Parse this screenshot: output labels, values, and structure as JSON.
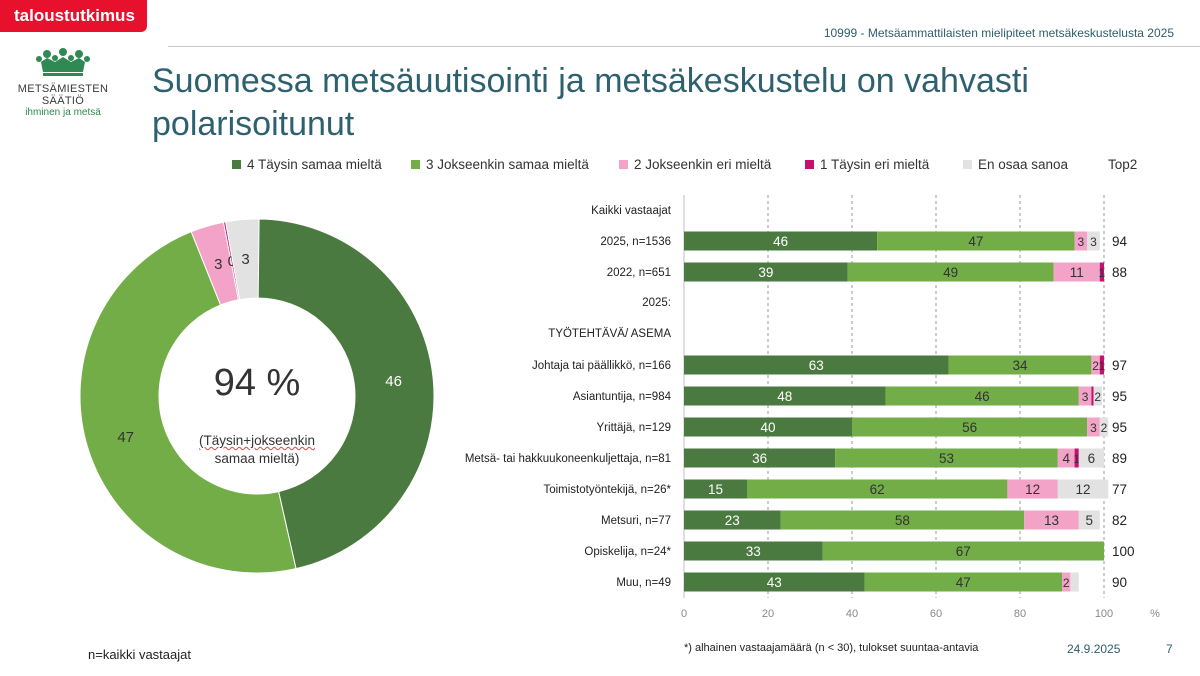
{
  "header": {
    "brand": "taloustutkimus",
    "report_id": "10999 - Metsäammattilaisten mielipiteet metsäkeskustelusta 2025"
  },
  "logo": {
    "name": "METSÄMIESTEN SÄÄTIÖ",
    "tagline": "ihminen ja metsä",
    "icon": "crown-icon"
  },
  "title": "Suomessa metsäuutisointi ja metsäkeskustelu on vahvasti polarisoitunut",
  "colors": {
    "fully_agree": "#4a7a3f",
    "somewhat_agree": "#72ad47",
    "somewhat_disagree": "#f2a3c7",
    "fully_disagree": "#c4106e",
    "dont_know": "#e2e2e2"
  },
  "legend": {
    "items": [
      {
        "label": "4 Täysin samaa mieltä",
        "color": "#4a7a3f"
      },
      {
        "label": "3 Jokseenkin samaa mieltä",
        "color": "#72ad47"
      },
      {
        "label": "2 Jokseenkin eri mieltä",
        "color": "#f2a3c7"
      },
      {
        "label": "1 Täysin eri mieltä",
        "color": "#c4106e"
      },
      {
        "label": "En osaa sanoa",
        "color": "#e2e2e2"
      }
    ],
    "top2_label": "Top2"
  },
  "donut": {
    "center_value": "94 %",
    "center_label_line1": "(Täysin+jokseenkin",
    "center_label_line2": "samaa mieltä)"
  },
  "chart_data": [
    {
      "type": "pie",
      "variant": "donut",
      "categories": [
        "4 Täysin samaa mieltä",
        "3 Jokseenkin samaa mieltä",
        "2 Jokseenkin eri mieltä",
        "1 Täysin eri mieltä",
        "En osaa sanoa"
      ],
      "values": [
        46,
        47,
        3,
        0,
        3
      ],
      "colors": [
        "#4a7a3f",
        "#72ad47",
        "#f2a3c7",
        "#c4106e",
        "#e2e2e2"
      ],
      "center_text": "94 %"
    },
    {
      "type": "bar",
      "orientation": "horizontal",
      "stacked": true,
      "xlabel": "%",
      "xlim": [
        0,
        100
      ],
      "xticks": [
        0,
        20,
        40,
        60,
        80,
        100
      ],
      "grid": true,
      "rows": [
        {
          "label": "Kaikki vastaajat",
          "header": true
        },
        {
          "label": "2025, n=1536",
          "values": [
            46,
            47,
            3,
            0,
            3
          ],
          "labels": [
            "46",
            "47",
            "3",
            "",
            "3"
          ],
          "top2": "94"
        },
        {
          "label": "2022, n=651",
          "values": [
            39,
            49,
            11,
            1,
            0
          ],
          "labels": [
            "39",
            "49",
            "11",
            "1",
            ""
          ],
          "top2": "88"
        },
        {
          "label": "2025:",
          "header": true
        },
        {
          "label": "TYÖTEHTÄVÄ/ ASEMA",
          "header": true
        },
        {
          "label": "Johtaja tai päällikkö, n=166",
          "values": [
            63,
            34,
            2,
            1,
            0
          ],
          "labels": [
            "63",
            "34",
            "2",
            "1",
            ""
          ],
          "top2": "97"
        },
        {
          "label": "Asiantuntija, n=984",
          "values": [
            48,
            46,
            3,
            0.5,
            2
          ],
          "labels": [
            "48",
            "46",
            "3",
            "",
            "2"
          ],
          "top2": "95"
        },
        {
          "label": "Yrittäjä, n=129",
          "values": [
            40,
            56,
            3,
            0,
            2
          ],
          "labels": [
            "40",
            "56",
            "3",
            "",
            "2"
          ],
          "top2": "95"
        },
        {
          "label": "Metsä- tai hakkuukoneenkuljettaja, n=81",
          "values": [
            36,
            53,
            4,
            1,
            6
          ],
          "labels": [
            "36",
            "53",
            "4",
            "1",
            "6"
          ],
          "top2": "89"
        },
        {
          "label": "Toimistotyöntekijä, n=26*",
          "values": [
            15,
            62,
            12,
            0,
            12
          ],
          "labels": [
            "15",
            "62",
            "12",
            "",
            "12"
          ],
          "top2": "77"
        },
        {
          "label": "Metsuri, n=77",
          "values": [
            23,
            58,
            13,
            0,
            5
          ],
          "labels": [
            "23",
            "58",
            "13",
            "",
            "5"
          ],
          "top2": "82"
        },
        {
          "label": "Opiskelija, n=24*",
          "values": [
            33,
            67,
            0,
            0,
            0
          ],
          "labels": [
            "33",
            "67",
            "",
            "",
            ""
          ],
          "top2": "100"
        },
        {
          "label": "Muu, n=49",
          "values": [
            43,
            47,
            2,
            0,
            2
          ],
          "labels": [
            "43",
            "47",
            "2",
            "",
            ""
          ],
          "top2": "90"
        }
      ],
      "series_names": [
        "4 Täysin samaa mieltä",
        "3 Jokseenkin samaa mieltä",
        "2 Jokseenkin eri mieltä",
        "1 Täysin eri mieltä",
        "En osaa sanoa"
      ]
    }
  ],
  "footer": {
    "base_note": "n=kaikki vastaajat",
    "sample_note": "*) alhainen vastaajamäärä (n < 30), tulokset suuntaa-antavia",
    "date": "24.9.2025",
    "page": "7"
  }
}
